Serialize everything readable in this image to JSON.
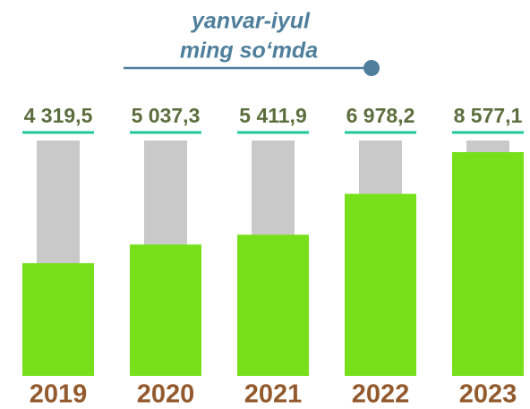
{
  "chart_data": {
    "type": "bar",
    "title": "yanvar-iyul",
    "subtitle": "ming so‘mda",
    "categories": [
      "2019",
      "2020",
      "2021",
      "2022",
      "2023"
    ],
    "values": [
      4319.5,
      5037.3,
      5411.9,
      6978.2,
      8577.1
    ],
    "value_labels": [
      "4 319,5",
      "5 037,3",
      "5 411,9",
      "6 978,2",
      "8 577,1"
    ],
    "color": "#77e01a"
  }
}
